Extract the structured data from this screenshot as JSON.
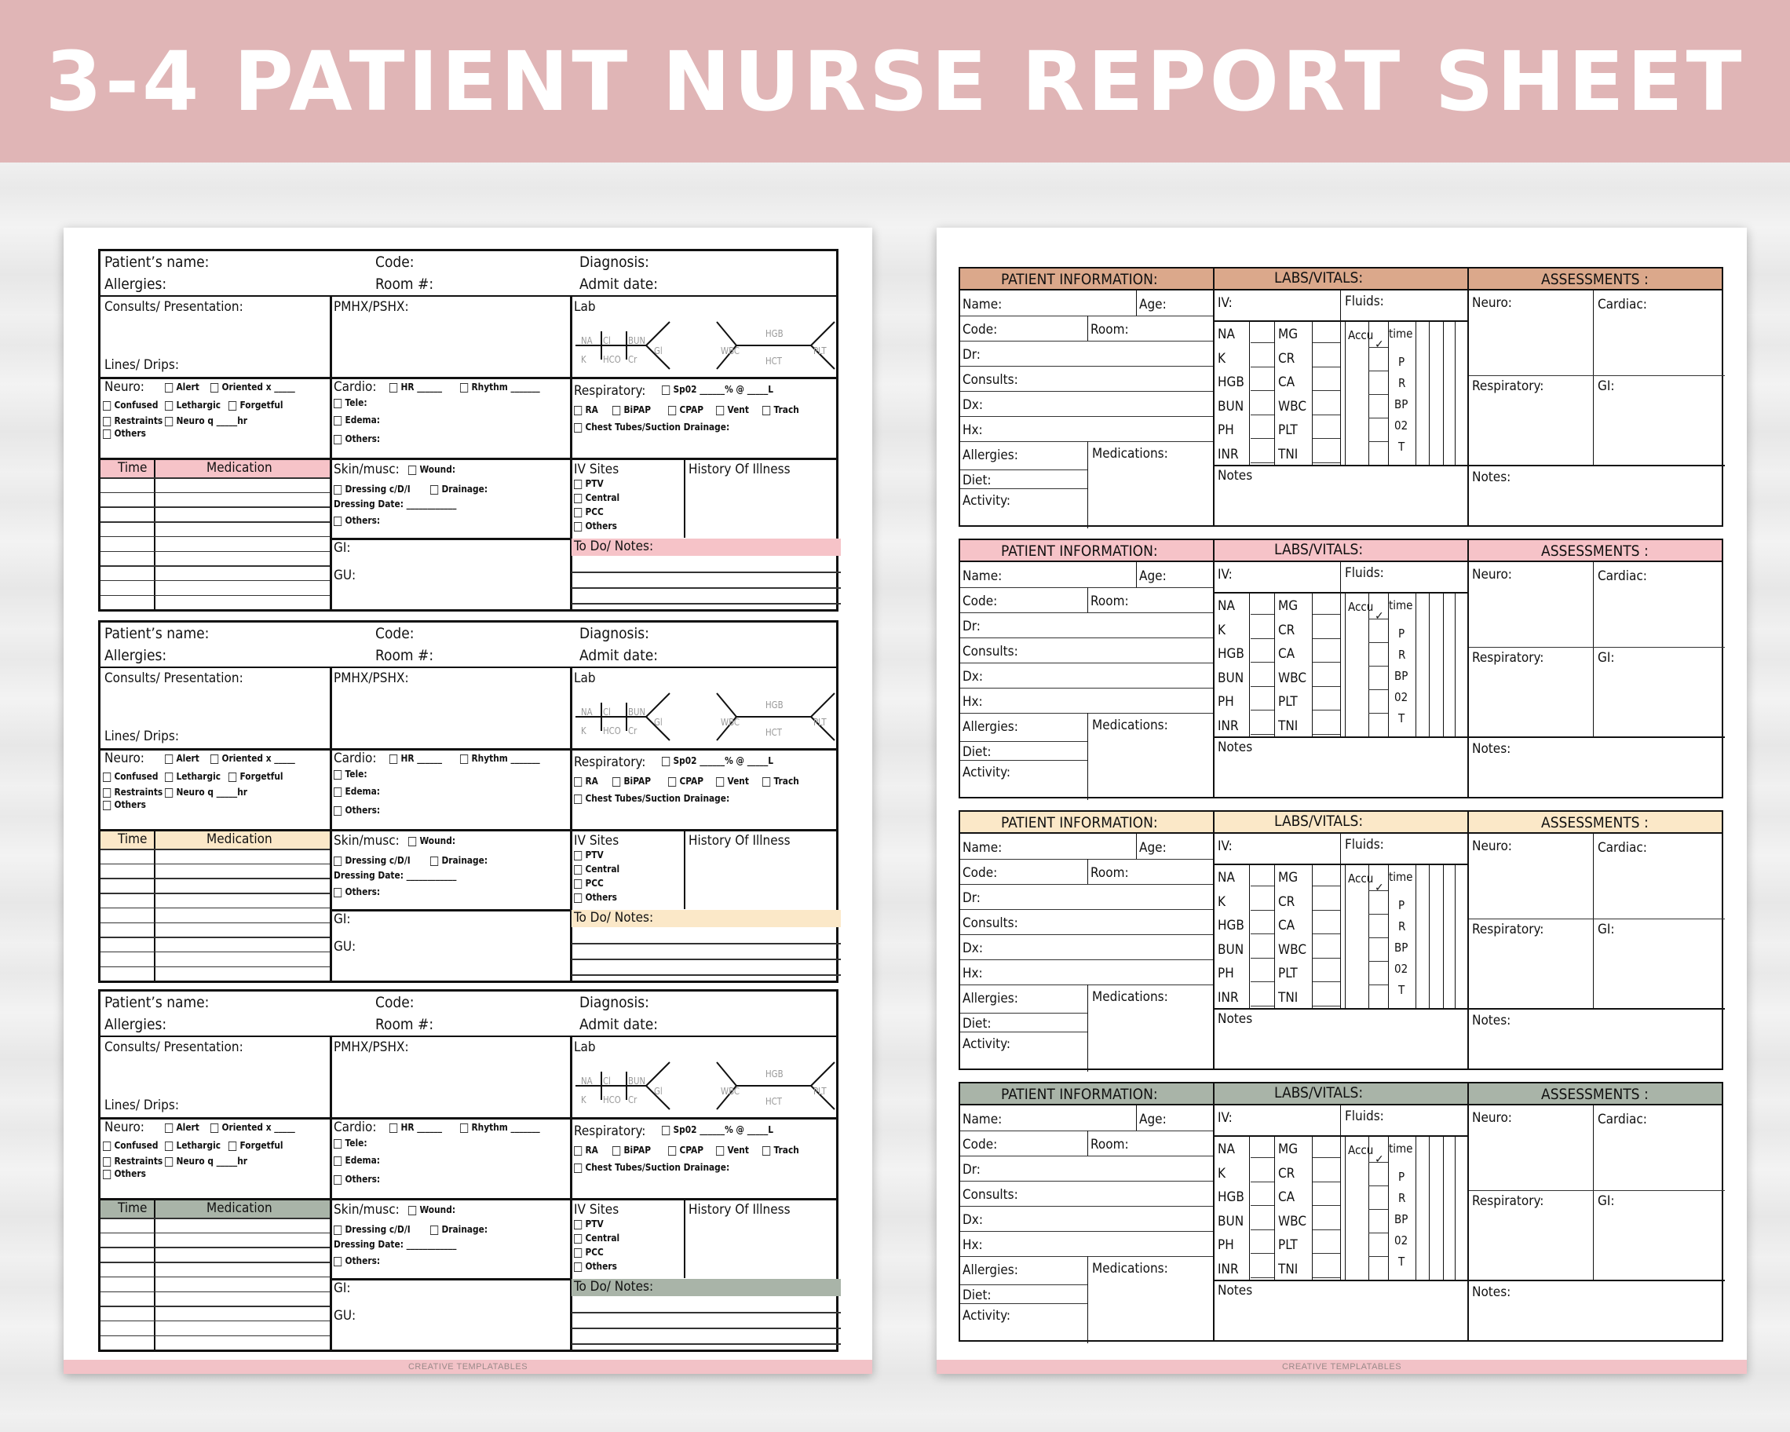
{
  "banner": {
    "title": "3-4 PATIENT NURSE REPORT SHEET",
    "background": "#e0b5b6"
  },
  "left_sheet": {
    "footer": "CREATIVE TEMPLATABLES",
    "labels": {
      "patient_name": "Patient’s name:",
      "code": "Code:",
      "diagnosis": "Diagnosis:",
      "allergies": "Allergies:",
      "room": "Room #:",
      "admit_date": "Admit date:",
      "consults": "Consults/ Presentation:",
      "lines": "Lines/ Drips:",
      "pmhx": "PMHX/PSHX:",
      "lab": "Lab",
      "neuro": "Neuro:",
      "alert": "Alert",
      "oriented": "Oriented x _____",
      "confused": "Confused",
      "lethargic": "Lethargic",
      "forgetful": "Forgetful",
      "restraints": "Restraints",
      "neuro_q": "Neuro    q _____hr",
      "others": "Others",
      "others_colon": "Others:",
      "cardio": "Cardio:",
      "hr": "HR ______",
      "rhythm": "Rhythm _______",
      "tele": "Tele:",
      "edema": "Edema:",
      "respiratory": "Respiratory:",
      "sp02": "Sp02 ______% @ _____L",
      "ra": "RA",
      "bipap": "BiPAP",
      "cpap": "CPAP",
      "vent": "Vent",
      "trach": "Trach",
      "chest_tubes": "Chest Tubes/Suction Drainage:",
      "time": "Time",
      "medication": "Medication",
      "skin": "Skin/musc:",
      "wound": "Wound:",
      "dressing": "Dressing c/D/I",
      "drainage": "Drainage:",
      "dressing_date": "Dressing Date: ____________",
      "gi": "GI:",
      "gu": "GU:",
      "iv_sites": "IV Sites",
      "ptv": "PTV",
      "central": "Central",
      "pcc": "PCC",
      "history": "History Of Illness",
      "todo": "To Do/ Notes:",
      "lab_na": "NA",
      "lab_cl": "Cl",
      "lab_bun": "BUN",
      "lab_k": "K",
      "lab_hco": "HCO",
      "lab_cr": "Cr",
      "lab_gl": "Gl",
      "lab_hgb": "HGB",
      "lab_wbc": "WBC",
      "lab_plt": "PLT",
      "lab_hct": "HCT"
    },
    "accent_colors": [
      "#f6c3c8",
      "#fbe8c8",
      "#a9b4a8"
    ]
  },
  "right_sheet": {
    "footer": "CREATIVE TEMPLATABLES",
    "labels": {
      "patient_info": "PATIENT INFORMATION:",
      "labs_vitals": "LABS/VITALS:",
      "assessments": "ASSESSMENTS :",
      "name": "Name:",
      "age": "Age:",
      "code": "Code:",
      "room": "Room:",
      "dr": "Dr:",
      "consults": "Consults:",
      "dx": "Dx:",
      "hx": "Hx:",
      "allergies": "Allergies:",
      "medications": "Medications:",
      "diet": "Diet:",
      "activity": "Activity:",
      "iv": "IV:",
      "fluids": "Fluids:",
      "notes": "Notes",
      "neuro": "Neuro:",
      "cardiac": "Cardiac:",
      "respiratory": "Respiratory:",
      "gi": "GI:",
      "notes_colon": "Notes:",
      "accu": "Accu",
      "time": "time",
      "labs_left": [
        "NA",
        "K",
        "HGB",
        "BUN",
        "PH",
        "INR"
      ],
      "labs_right": [
        "MG",
        "CR",
        "CA",
        "WBC",
        "PLT",
        "TNI"
      ],
      "vitals": [
        "P",
        "R",
        "BP",
        "02",
        "T"
      ]
    },
    "accent_colors": [
      "#dba88b",
      "#f6c3c8",
      "#fbe8c8",
      "#a9b4a8"
    ]
  }
}
